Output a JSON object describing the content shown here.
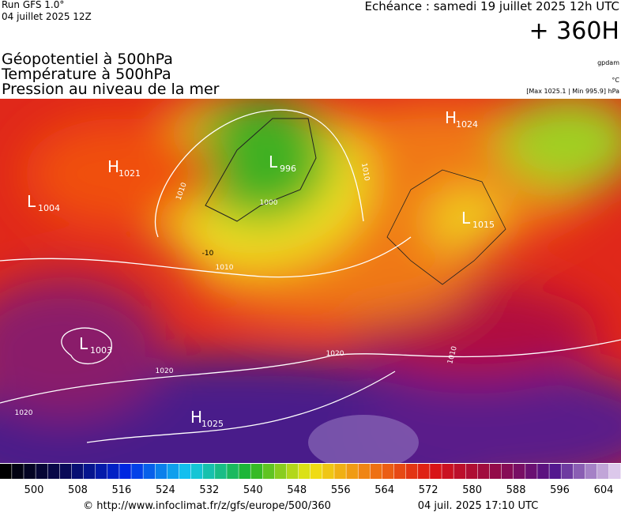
{
  "header": {
    "run": "Run GFS 1.0°",
    "run_date": "04 juillet 2025 12Z",
    "valid": "Echéance : samedi 19 juillet 2025 12h UTC",
    "lead": "+ 360H",
    "titles": [
      "Géopotentiel à 500hPa",
      "Température à 500hPa",
      "Pression au niveau de la mer"
    ],
    "unit_geo": "gpdam",
    "unit_temp": "°C",
    "pressure_range": "[Max 1025.1 | Min 995.9] hPa"
  },
  "map": {
    "pressure_centers": [
      {
        "letter": "H",
        "value": "1021"
      },
      {
        "letter": "L",
        "value": "1004"
      },
      {
        "letter": "L",
        "value": "996"
      },
      {
        "letter": "H",
        "value": "1024"
      },
      {
        "letter": "L",
        "value": "1015"
      },
      {
        "letter": "L",
        "value": "1003"
      },
      {
        "letter": "H",
        "value": "1025"
      }
    ],
    "isobar_labels": [
      "1010",
      "1000",
      "1010",
      "1020",
      "1020",
      "1020",
      "1010",
      "1010"
    ],
    "isotherm_labels": [
      "-10"
    ]
  },
  "colorbar": {
    "labels": [
      "500",
      "508",
      "516",
      "524",
      "532",
      "540",
      "548",
      "556",
      "564",
      "572",
      "580",
      "588",
      "596",
      "604"
    ]
  },
  "footer": {
    "url": "© http://www.infoclimat.fr/z/gfs/europe/500/360",
    "timestamp": "04 juil. 2025 17:10 UTC"
  }
}
